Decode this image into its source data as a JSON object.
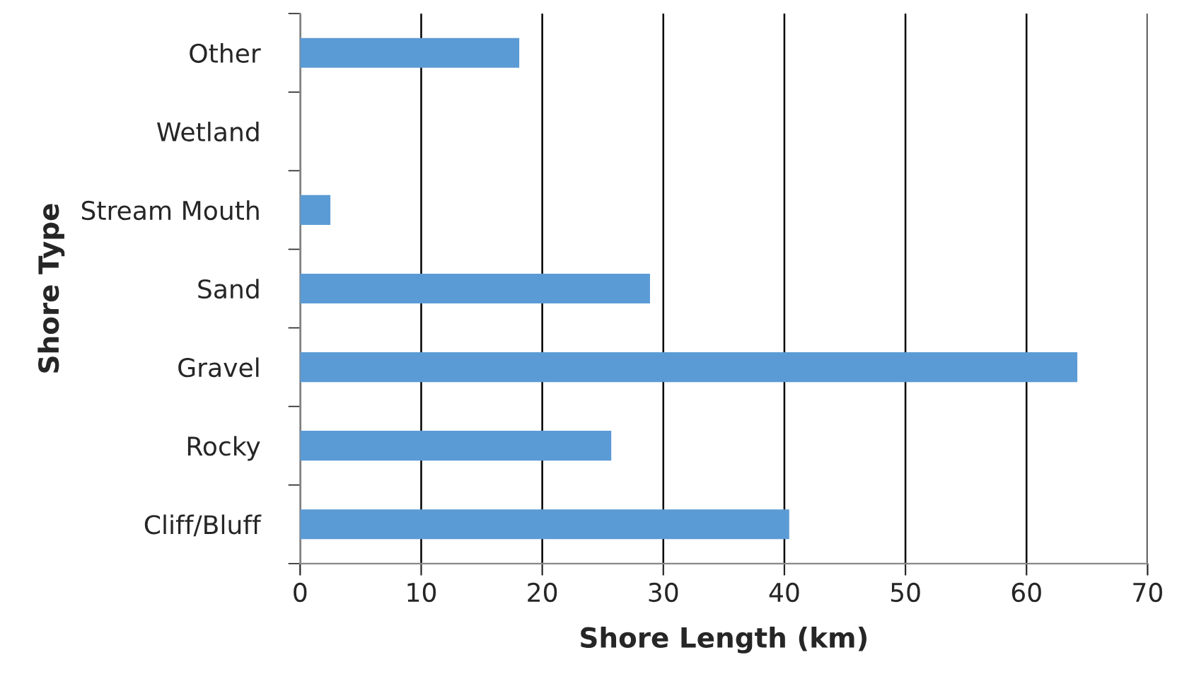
{
  "chart_data": {
    "type": "bar",
    "orientation": "horizontal",
    "xlabel": "Shore Length (km)",
    "ylabel": "Shore Type",
    "categories": [
      "Other",
      "Wetland",
      "Stream Mouth",
      "Sand",
      "Gravel",
      "Rocky",
      "Cliff/Bluff"
    ],
    "values": [
      18.1,
      null,
      2.5,
      28.9,
      64.2,
      25.7,
      40.4
    ],
    "color": "#5b9bd5",
    "xlim": [
      0,
      70
    ],
    "xticks": [
      0,
      10,
      20,
      30,
      40,
      50,
      60,
      70
    ],
    "grid": "x",
    "legend": false
  }
}
